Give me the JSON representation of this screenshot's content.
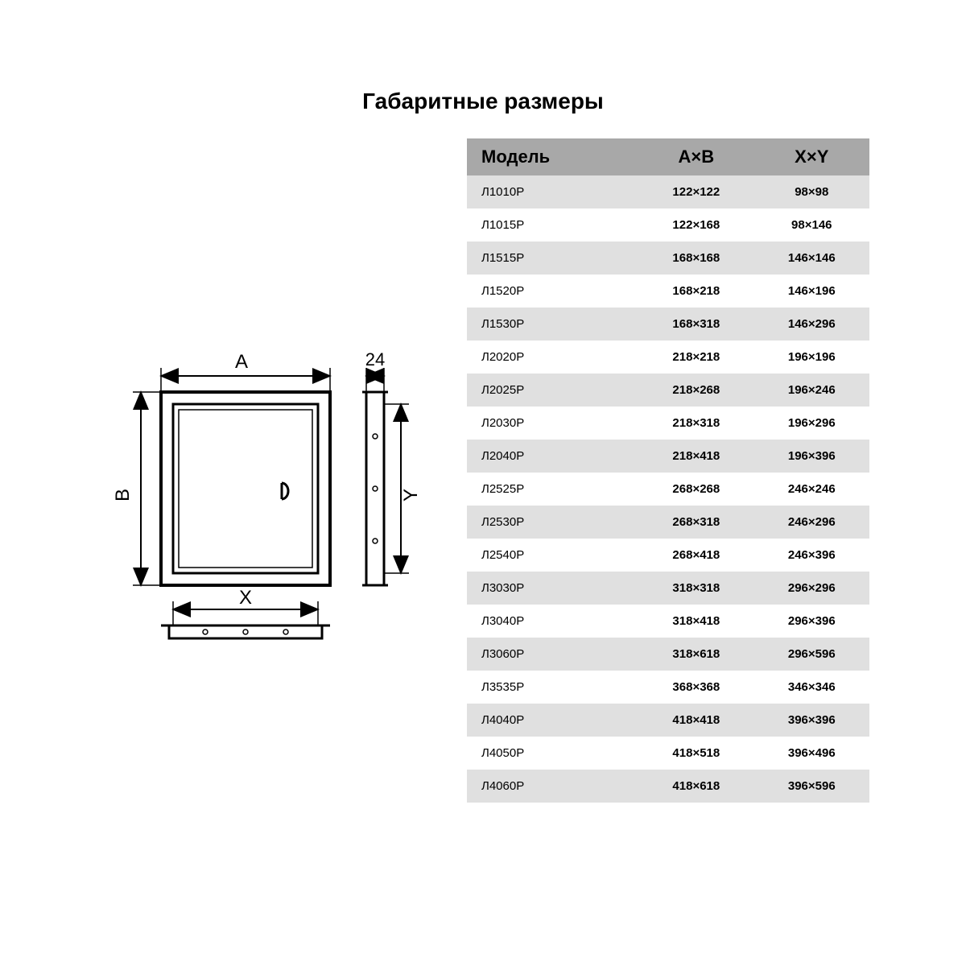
{
  "title": "Габаритные размеры",
  "table": {
    "columns": [
      "Модель",
      "A×B",
      "X×Y"
    ],
    "header_bg": "#a8a8a8",
    "row_alt_bg": "#e0e0e0",
    "row_bg": "#ffffff",
    "rows": [
      [
        "Л1010Р",
        "122×122",
        "98×98"
      ],
      [
        "Л1015Р",
        "122×168",
        "98×146"
      ],
      [
        "Л1515Р",
        "168×168",
        "146×146"
      ],
      [
        "Л1520Р",
        "168×218",
        "146×196"
      ],
      [
        "Л1530Р",
        "168×318",
        "146×296"
      ],
      [
        "Л2020Р",
        "218×218",
        "196×196"
      ],
      [
        "Л2025Р",
        "218×268",
        "196×246"
      ],
      [
        "Л2030Р",
        "218×318",
        "196×296"
      ],
      [
        "Л2040Р",
        "218×418",
        "196×396"
      ],
      [
        "Л2525Р",
        "268×268",
        "246×246"
      ],
      [
        "Л2530Р",
        "268×318",
        "246×296"
      ],
      [
        "Л2540Р",
        "268×418",
        "246×396"
      ],
      [
        "Л3030Р",
        "318×318",
        "296×296"
      ],
      [
        "Л3040Р",
        "318×418",
        "296×396"
      ],
      [
        "Л3060Р",
        "318×618",
        "296×596"
      ],
      [
        "Л3535Р",
        "368×368",
        "346×346"
      ],
      [
        "Л4040Р",
        "418×418",
        "396×396"
      ],
      [
        "Л4050Р",
        "418×518",
        "396×496"
      ],
      [
        "Л4060Р",
        "418×618",
        "396×596"
      ]
    ]
  },
  "diagram": {
    "labels": {
      "A": "A",
      "B": "B",
      "X": "X",
      "Y": "Y",
      "depth": "24",
      "handle": "D"
    },
    "stroke": "#000000",
    "stroke_width": 3,
    "font_size": 22
  }
}
